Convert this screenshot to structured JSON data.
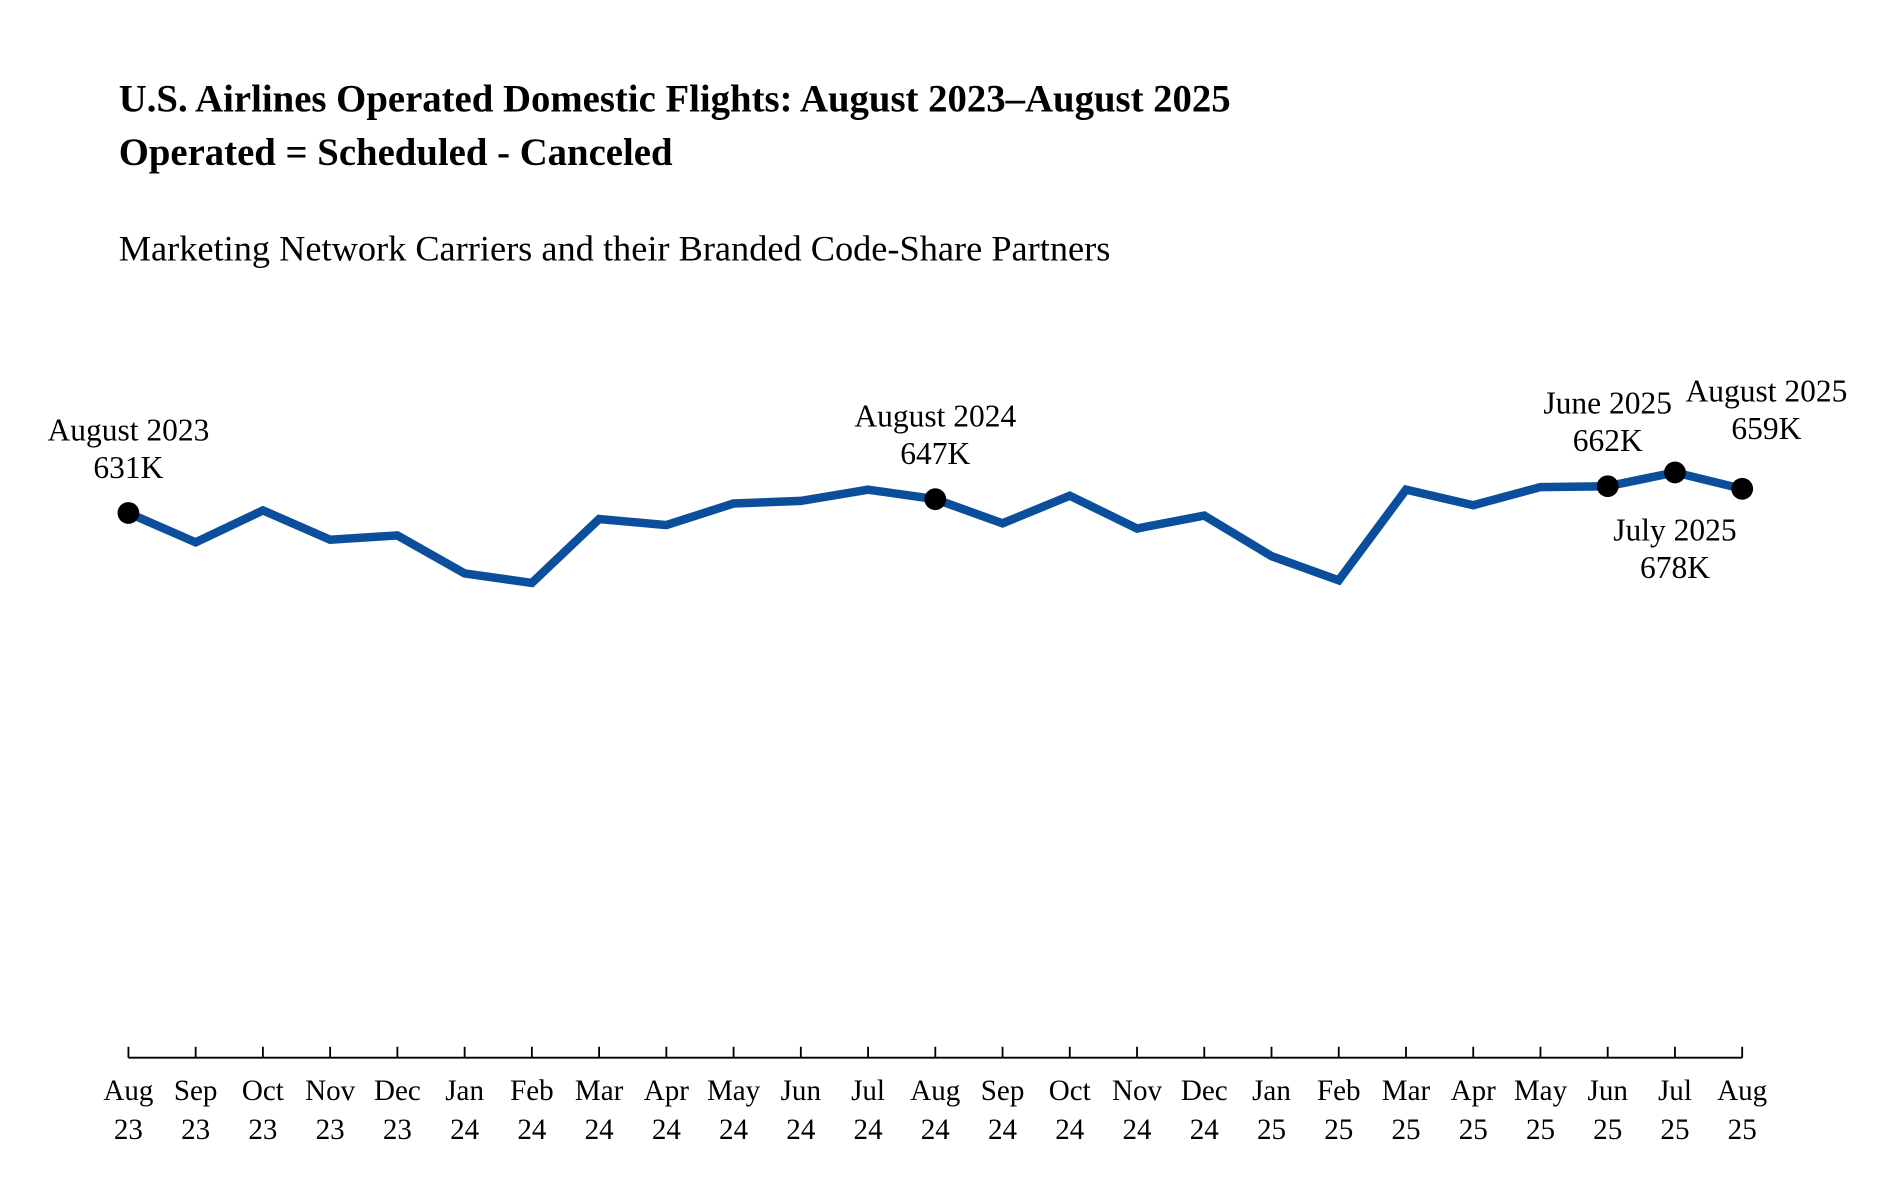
{
  "chart_data": {
    "type": "line",
    "title": "U.S. Airlines Operated Domestic Flights: August 2023–August 2025",
    "subtitle": "Operated = Scheduled - Canceled",
    "description": "Marketing Network Carriers and their Branded Code-Share Partners",
    "categories": [
      "Aug 23",
      "Sep 23",
      "Oct 23",
      "Nov 23",
      "Dec 23",
      "Jan 24",
      "Feb 24",
      "Mar 24",
      "Apr 24",
      "May 24",
      "Jun 24",
      "Jul 24",
      "Aug 24",
      "Sep 24",
      "Oct 24",
      "Nov 24",
      "Dec 24",
      "Jan 25",
      "Feb 25",
      "Mar 25",
      "Apr 25",
      "May 25",
      "Jun 25",
      "Jul 25",
      "Aug 25"
    ],
    "series": [
      {
        "name": "Operated",
        "color": "#0b4f9c",
        "values": [
          631,
          597,
          634,
          600,
          605,
          561,
          550,
          624,
          617,
          642,
          645,
          658,
          647,
          619,
          651,
          613,
          628,
          581,
          553,
          658,
          640,
          661,
          662,
          678,
          659
        ],
        "point_labels": [
          "August 2023",
          null,
          null,
          null,
          null,
          null,
          null,
          null,
          null,
          null,
          null,
          null,
          "August 2024",
          null,
          null,
          null,
          null,
          null,
          null,
          null,
          null,
          null,
          "June 2025",
          "July 2025",
          "August 2025"
        ],
        "value_labels": [
          "631K",
          null,
          null,
          null,
          null,
          null,
          null,
          null,
          null,
          null,
          null,
          null,
          "647K",
          null,
          null,
          null,
          null,
          null,
          null,
          null,
          null,
          null,
          "662K",
          "678K",
          "659K"
        ]
      }
    ],
    "ylim": [
      0,
      800
    ]
  }
}
